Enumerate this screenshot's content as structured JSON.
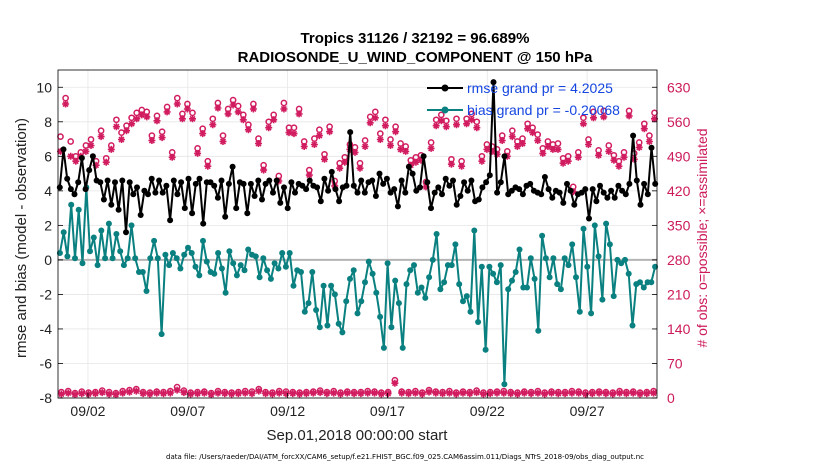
{
  "colors": {
    "rmse": "#000000",
    "bias": "#0a8080",
    "obs": "#d11c60",
    "legend_text": "#1546e0",
    "zero_line": "#b4b4b4",
    "grid": "#e6e6e6"
  },
  "chart_data": {
    "type": "line",
    "title": "Tropics 31126 / 32192 = 96.689%",
    "subtitle": "RADIOSONDE_U_WIND_COMPONENT @ 150 hPa",
    "xlabel": "Sep.01,2018 00:00:00 start",
    "ylabel": "rmse and bias (model - observation)",
    "ylabel_right": "# of obs: o=possible; ×=assimilated",
    "xlim": [
      0.5,
      30.5
    ],
    "ylim": [
      -8,
      11
    ],
    "ylim_right": [
      0,
      665
    ],
    "x_ticks": [
      {
        "value": 2,
        "label": "09/02"
      },
      {
        "value": 7,
        "label": "09/07"
      },
      {
        "value": 12,
        "label": "09/12"
      },
      {
        "value": 17,
        "label": "09/17"
      },
      {
        "value": 22,
        "label": "09/22"
      },
      {
        "value": 27,
        "label": "09/27"
      }
    ],
    "y_ticks": [
      {
        "value": -8,
        "label": "-8"
      },
      {
        "value": -6,
        "label": "-6"
      },
      {
        "value": -4,
        "label": "-4"
      },
      {
        "value": -2,
        "label": "-2"
      },
      {
        "value": 0,
        "label": "0"
      },
      {
        "value": 2,
        "label": "2"
      },
      {
        "value": 4,
        "label": "4"
      },
      {
        "value": 6,
        "label": "6"
      },
      {
        "value": 8,
        "label": "8"
      },
      {
        "value": 10,
        "label": "10"
      }
    ],
    "y_ticks_right": [
      {
        "value": 0,
        "label": "0"
      },
      {
        "value": 70,
        "label": "70"
      },
      {
        "value": 140,
        "label": "140"
      },
      {
        "value": 210,
        "label": "210"
      },
      {
        "value": 280,
        "label": "280"
      },
      {
        "value": 350,
        "label": "350"
      },
      {
        "value": 420,
        "label": "420"
      },
      {
        "value": 490,
        "label": "490"
      },
      {
        "value": 560,
        "label": "560"
      },
      {
        "value": 630,
        "label": "630"
      }
    ],
    "legend": [
      {
        "name": "rmse grand pr = 4.2025",
        "series": "rmse"
      },
      {
        "name": "bias grand pr = -0.20068",
        "series": "bias"
      }
    ],
    "legend_placement": "top-right",
    "grid": true,
    "series": [
      {
        "name": "rmse",
        "axis": "left",
        "style": "line-dot",
        "values": [
          4.2,
          6.4,
          4.7,
          4.1,
          3.8,
          4.5,
          5.9,
          4.1,
          5.2,
          6.0,
          4.6,
          4.5,
          3.5,
          4.6,
          3.2,
          4.5,
          2.9,
          4.6,
          1.6,
          4.5,
          3.8,
          4.2,
          2.6,
          4.0,
          3.8,
          4.7,
          3.9,
          4.6,
          3.9,
          4.3,
          2.3,
          4.6,
          3.8,
          4.5,
          3.0,
          4.7,
          2.7,
          4.4,
          4.7,
          2.1,
          4.5,
          4.5,
          4.3,
          3.6,
          4.6,
          2.5,
          4.4,
          5.4,
          3.0,
          4.5,
          4.4,
          2.7,
          4.4,
          3.7,
          4.6,
          3.5,
          4.4,
          4.6,
          3.9,
          4.6,
          3.3,
          4.2,
          3.0,
          4.5,
          3.9,
          4.4,
          4.3,
          4.1,
          4.6,
          4.3,
          4.2,
          3.4,
          4.7,
          4.0,
          5.1,
          4.1,
          3.4,
          4.2,
          4.3,
          7.4,
          4.3,
          3.9,
          4.6,
          3.9,
          4.5,
          4.6,
          3.7,
          5.0,
          4.4,
          4.7,
          3.9,
          4.1,
          3.1,
          4.6,
          3.9,
          5.4,
          5.0,
          4.0,
          4.2,
          6.0,
          4.5,
          3.0,
          3.9,
          4.2,
          3.8,
          4.7,
          4.3,
          4.6,
          3.2,
          3.7,
          4.5,
          4.0,
          4.6,
          3.4,
          3.5,
          4.2,
          4.5,
          4.9,
          10.3,
          3.9,
          4.5,
          6.0,
          3.8,
          4.0,
          4.2,
          4.1,
          3.8,
          4.3,
          4.4,
          4.0,
          3.9,
          3.8,
          4.8,
          4.1,
          3.6,
          4.0,
          3.9,
          3.3,
          4.4,
          4.0,
          3.2,
          3.8,
          3.9,
          4.1,
          2.4,
          4.1,
          3.4,
          4.3,
          3.9,
          3.6,
          4.0,
          3.6,
          4.3,
          4.0,
          3.8,
          4.4,
          7.2,
          4.6,
          3.2,
          4.4,
          3.8,
          6.5,
          4.4
        ]
      },
      {
        "name": "bias",
        "axis": "left",
        "style": "line-dot",
        "values": [
          0.4,
          1.6,
          0.2,
          3.2,
          0.1,
          2.9,
          -0.2,
          4.2,
          0.5,
          1.3,
          -0.3,
          1.7,
          0.1,
          2.1,
          0.1,
          1.5,
          0.5,
          -0.3,
          0.1,
          2.0,
          0.1,
          -0.7,
          -0.7,
          -1.8,
          0.1,
          1.1,
          0.1,
          -4.3,
          0.3,
          -0.3,
          0.4,
          0.1,
          -0.5,
          0.3,
          0.7,
          0.4,
          -0.4,
          -0.9,
          1.1,
          -0.1,
          -0.7,
          -0.8,
          0.4,
          -0.5,
          -1.9,
          0.5,
          -0.2,
          -0.9,
          -0.3,
          -0.6,
          0.6,
          0.3,
          0.2,
          -1.0,
          0.1,
          -0.6,
          -1.1,
          -0.2,
          -0.5,
          0.4,
          -0.4,
          0.4,
          -1.5,
          -0.6,
          -0.7,
          -3.0,
          -2.5,
          -0.7,
          -2.9,
          -3.9,
          -1.5,
          -3.8,
          -1.5,
          -2.0,
          -3.7,
          -4.2,
          -2.4,
          -1.1,
          -0.6,
          -3.1,
          -2.4,
          -1.3,
          -0.1,
          -0.8,
          -1.9,
          -3.3,
          -5.1,
          -0.2,
          -3.9,
          -1.2,
          -2.5,
          -5.1,
          -1.4,
          -0.6,
          -0.3,
          -1.9,
          -1.6,
          -2.2,
          -1.0,
          0.0,
          1.5,
          -1.7,
          -1.3,
          -0.3,
          -0.3,
          0.9,
          -1.4,
          -2.4,
          -2.1,
          -3.0,
          1.7,
          -3.6,
          -0.4,
          -5.2,
          -0.4,
          -0.8,
          -1.3,
          -0.3,
          -7.2,
          -1.7,
          -1.2,
          -0.7,
          0.6,
          -1.6,
          -1.6,
          0.1,
          -1.1,
          -4.1,
          1.4,
          0.1,
          -1.0,
          0.1,
          -1.4,
          -1.7,
          0.1,
          -0.3,
          0.9,
          -1.0,
          -3.0,
          1.8,
          -0.4,
          -3.1,
          2.0,
          0.2,
          -2.3,
          2.1,
          0.9,
          -2.1,
          0.0,
          -0.2,
          0.0,
          -0.8,
          -3.8,
          -1.4,
          -1.3,
          -1.6,
          -1.3,
          -1.3,
          -0.4
        ]
      },
      {
        "name": "obs possible",
        "axis": "right",
        "style": "circle",
        "values": [
          530,
          608,
          520,
          490,
          498,
          512,
          524,
          480,
          542,
          486,
          512,
          564,
          538,
          552,
          568,
          578,
          584,
          580,
          532,
          572,
          540,
          590,
          498,
          608,
          576,
          596,
          578,
          506,
          546,
          480,
          566,
          598,
          532,
          586,
          604,
          592,
          574,
          554,
          596,
          526,
          472,
          560,
          574,
          450,
          598,
          548,
          548,
          586,
          520,
          462,
          526,
          544,
          494,
          550,
          440,
          476,
          488,
          514,
          508,
          476,
          522,
          570,
          580,
          536,
          564,
          524,
          550,
          516,
          510,
          482,
          488,
          492,
          438,
          518,
          564,
          574,
          562,
          484,
          566,
          480,
          566,
          576,
          560,
          490,
          514,
          510,
          504,
          532,
          500,
          542,
          520,
          526,
          556,
          548,
          534,
          506,
          520,
          514,
          516,
          486,
          490,
          428,
          498,
          568,
          524,
          580,
          502,
          582,
          512,
          492,
          480,
          498,
          582,
          496,
          518,
          556,
          532,
          578
        ]
      },
      {
        "name": "obs assimilated",
        "axis": "right",
        "style": "star",
        "values": [
          500,
          596,
          490,
          480,
          490,
          500,
          512,
          472,
          530,
          478,
          504,
          550,
          524,
          542,
          556,
          566,
          574,
          570,
          522,
          562,
          528,
          580,
          488,
          596,
          566,
          586,
          566,
          496,
          536,
          470,
          554,
          588,
          520,
          576,
          594,
          580,
          564,
          544,
          586,
          516,
          462,
          548,
          564,
          440,
          586,
          538,
          536,
          576,
          510,
          452,
          514,
          532,
          484,
          540,
          430,
          466,
          478,
          504,
          498,
          466,
          510,
          558,
          568,
          524,
          552,
          512,
          540,
          504,
          500,
          472,
          478,
          482,
          428,
          506,
          552,
          562,
          550,
          474,
          554,
          470,
          556,
          564,
          548,
          480,
          504,
          500,
          494,
          522,
          490,
          530,
          510,
          516,
          546,
          538,
          522,
          496,
          510,
          504,
          504,
          476,
          480,
          418,
          488,
          556,
          514,
          568,
          492,
          570,
          500,
          482,
          470,
          488,
          572,
          484,
          508,
          546,
          520,
          566
        ]
      },
      {
        "name": "obs low possible",
        "axis": "right",
        "style": "circle",
        "values": [
          12,
          14,
          10,
          13,
          11,
          12,
          15,
          12,
          10,
          14,
          16,
          18,
          12,
          11,
          13,
          12,
          14,
          22,
          15,
          11,
          12,
          13,
          10,
          14,
          12,
          11,
          12,
          14,
          13,
          18,
          12,
          11,
          14,
          13,
          12,
          11,
          12,
          13,
          15,
          12,
          14,
          11,
          13,
          12,
          12,
          14,
          13,
          11,
          12,
          36,
          13,
          12,
          14,
          11,
          16,
          13,
          12,
          14,
          11,
          13,
          12,
          15,
          11,
          12,
          13,
          14,
          12,
          11,
          13,
          12,
          14,
          11,
          13,
          12,
          12,
          14,
          13,
          11,
          12,
          13,
          12,
          11,
          14,
          12,
          13,
          11,
          12,
          14
        ]
      },
      {
        "name": "obs low assimilated",
        "axis": "right",
        "style": "star",
        "values": [
          8,
          10,
          7,
          9,
          8,
          9,
          11,
          8,
          7,
          10,
          12,
          14,
          9,
          8,
          10,
          9,
          10,
          16,
          11,
          8,
          9,
          10,
          7,
          10,
          9,
          8,
          9,
          10,
          9,
          14,
          9,
          8,
          10,
          9,
          9,
          8,
          9,
          10,
          11,
          9,
          10,
          8,
          10,
          9,
          9,
          10,
          10,
          8,
          9,
          30,
          10,
          9,
          10,
          8,
          12,
          10,
          9,
          10,
          8,
          10,
          9,
          11,
          8,
          9,
          10,
          10,
          9,
          8,
          10,
          9,
          10,
          8,
          10,
          9,
          9,
          10,
          10,
          8,
          9,
          10,
          9,
          8,
          10,
          9,
          10,
          8,
          9,
          10
        ]
      }
    ]
  },
  "footer": "data file: /Users/raeder/DAI/ATM_forcXX/CAM6_setup/f.e21.FHIST_BGC.f09_025.CAM6assim.011/Diags_NTrS_2018-09/obs_diag_output.nc"
}
